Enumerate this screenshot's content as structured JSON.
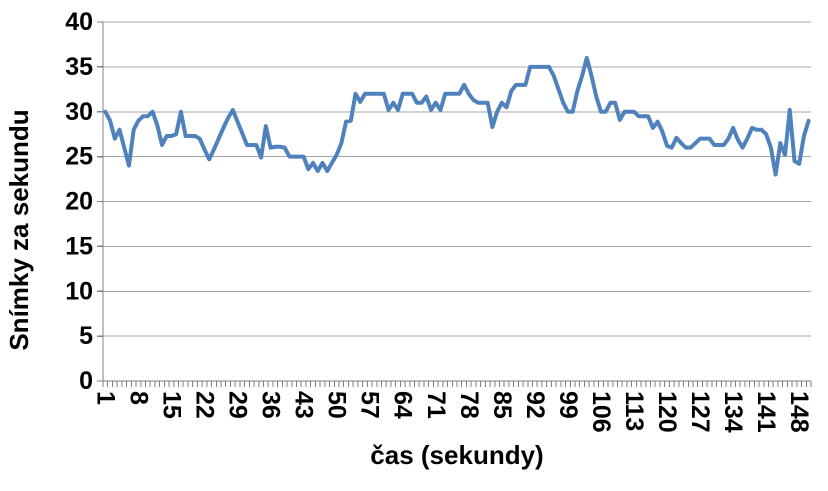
{
  "colors": {
    "line": "#4F81BD",
    "gridline": "#A6A6A6",
    "axis": "#808080",
    "text": "#000000",
    "background": "#FFFFFF"
  },
  "chart_data": {
    "type": "line",
    "title": "",
    "xlabel": "čas (sekundy)",
    "ylabel": "Snímky za sekundu",
    "x_range": [
      1,
      150
    ],
    "x_tick_step": 7,
    "x_tick_labels": [
      "1",
      "8",
      "15",
      "22",
      "29",
      "36",
      "43",
      "50",
      "57",
      "64",
      "71",
      "78",
      "85",
      "92",
      "99",
      "106",
      "113",
      "120",
      "127",
      "134",
      "141",
      "148"
    ],
    "ylim": [
      0,
      40
    ],
    "y_ticks": [
      0,
      5,
      10,
      15,
      20,
      25,
      30,
      35,
      40
    ],
    "grid": "horizontal",
    "legend": "none",
    "series": [
      {
        "name": "Snímky za sekundu",
        "values": [
          30,
          29,
          27,
          28,
          26,
          24,
          28,
          29,
          29.5,
          29.5,
          30,
          28.5,
          26.3,
          27.3,
          27.3,
          27.5,
          30,
          27.3,
          27.3,
          27.3,
          27,
          25.8,
          24.7,
          25.8,
          27,
          28.2,
          29.3,
          30.2,
          28.9,
          27.6,
          26.3,
          26.3,
          26.3,
          24.9,
          28.4,
          26,
          26.1,
          26.1,
          26,
          25,
          25,
          25,
          25,
          23.6,
          24.3,
          23.4,
          24.3,
          23.4,
          24.3,
          25.2,
          26.5,
          28.9,
          29,
          32,
          31.1,
          32,
          32,
          32,
          32,
          32,
          30.2,
          31,
          30.2,
          32,
          32,
          32,
          31,
          31,
          31.7,
          30.2,
          31,
          30.2,
          32,
          32,
          32,
          32,
          33,
          32,
          31.3,
          31,
          31,
          31,
          28.3,
          30,
          31,
          30.5,
          32.3,
          33,
          33,
          33,
          35,
          35,
          35,
          35,
          35,
          34,
          32.5,
          31,
          30,
          30,
          32.3,
          34,
          36,
          34,
          31.7,
          30,
          30,
          31,
          31,
          29.1,
          30,
          30,
          30,
          29.5,
          29.5,
          29.5,
          28.2,
          28.9,
          27.8,
          26.2,
          26,
          27.1,
          26.5,
          26,
          26,
          26.5,
          27,
          27,
          27,
          26.3,
          26.3,
          26.3,
          27,
          28.2,
          26.9,
          26,
          27,
          28.2,
          28,
          28,
          27.5,
          26,
          23,
          26.5,
          25.2,
          30.2,
          24.5,
          24.2,
          27.3,
          29
        ]
      }
    ]
  }
}
